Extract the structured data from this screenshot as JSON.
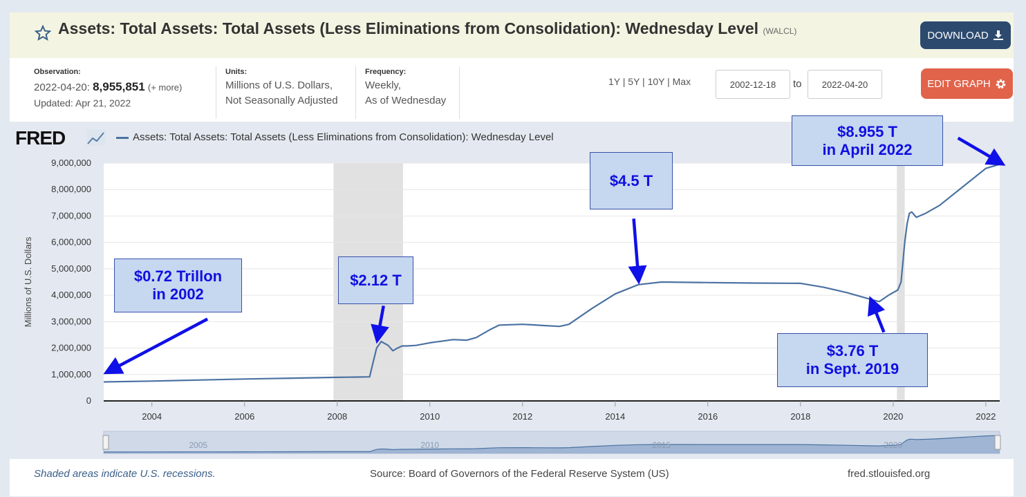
{
  "header": {
    "title": "Assets: Total Assets: Total Assets (Less Eliminations from Consolidation): Wednesday Level",
    "series_id": "(WALCL)",
    "download_label": "DOWNLOAD",
    "edit_label": "EDIT GRAPH"
  },
  "meta": {
    "observation_label": "Observation:",
    "observation_date": "2022-04-20:",
    "observation_value": "8,955,851",
    "observation_more": "(+ more)",
    "updated": "Updated: Apr 21, 2022",
    "units_label": "Units:",
    "units_line1": "Millions of U.S. Dollars,",
    "units_line2": "Not Seasonally Adjusted",
    "frequency_label": "Frequency:",
    "frequency_line1": "Weekly,",
    "frequency_line2": "As of Wednesday"
  },
  "controls": {
    "ranges": "1Y | 5Y | 10Y | Max",
    "start_date": "2002-12-18",
    "to_label": "to",
    "end_date": "2022-04-20"
  },
  "legend": {
    "logo": "FRED",
    "series_name": "Assets: Total Assets: Total Assets (Less Eliminations from Consolidation): Wednesday Level"
  },
  "annotations": [
    {
      "line1": "$0.72 Trillon",
      "line2": "in 2002"
    },
    {
      "line1": "$2.12 T",
      "line2": ""
    },
    {
      "line1": "$4.5 T",
      "line2": ""
    },
    {
      "line1": "$8.955 T",
      "line2": "in April 2022"
    },
    {
      "line1": "$3.76 T",
      "line2": "in Sept. 2019"
    }
  ],
  "footer": {
    "recessions_note": "Shaded areas indicate U.S. recessions.",
    "source": "Source: Board of Governors of the Federal Reserve System (US)",
    "site": "fred.stlouisfed.org"
  },
  "colors": {
    "line": "#4b72a1",
    "recession": "#e1e1e1",
    "callout_text": "#1010e0",
    "arrow": "#1010e8"
  },
  "chart_data": {
    "type": "line",
    "ylabel": "Millions of U.S. Dollars",
    "xlim": [
      2002.96,
      2022.3
    ],
    "ylim": [
      0,
      9000000
    ],
    "y_ticks": [
      0,
      1000000,
      2000000,
      3000000,
      4000000,
      5000000,
      6000000,
      7000000,
      8000000,
      9000000
    ],
    "y_tick_labels": [
      "0",
      "1,000,000",
      "2,000,000",
      "3,000,000",
      "4,000,000",
      "5,000,000",
      "6,000,000",
      "7,000,000",
      "8,000,000",
      "9,000,000"
    ],
    "x_ticks": [
      2004,
      2006,
      2008,
      2010,
      2012,
      2014,
      2016,
      2018,
      2020,
      2022
    ],
    "x_tick_labels": [
      "2004",
      "2006",
      "2008",
      "2010",
      "2012",
      "2014",
      "2016",
      "2018",
      "2020",
      "2022"
    ],
    "navigator_labels": [
      "2005",
      "2010",
      "2015",
      "2020"
    ],
    "navigator_ticks": [
      2005,
      2010,
      2015,
      2020
    ],
    "recessions": [
      [
        2007.92,
        2009.42
      ],
      [
        2020.08,
        2020.25
      ]
    ],
    "grid": true,
    "series": [
      {
        "x": [
          2002.96,
          2004.0,
          2005.0,
          2006.0,
          2007.0,
          2007.9,
          2008.7,
          2008.78,
          2008.85,
          2008.95,
          2009.0,
          2009.1,
          2009.2,
          2009.3,
          2009.4,
          2009.5,
          2009.7,
          2010.0,
          2010.5,
          2010.8,
          2011.0,
          2011.3,
          2011.5,
          2012.0,
          2012.2,
          2012.5,
          2012.8,
          2013.0,
          2013.5,
          2014.0,
          2014.5,
          2015.0,
          2016.0,
          2017.0,
          2018.0,
          2018.5,
          2019.0,
          2019.5,
          2019.7,
          2019.9,
          2020.1,
          2020.17,
          2020.25,
          2020.3,
          2020.35,
          2020.4,
          2020.5,
          2020.7,
          2021.0,
          2021.5,
          2022.0,
          2022.3
        ],
        "y": [
          720000,
          750000,
          790000,
          830000,
          860000,
          890000,
          910000,
          1500000,
          2000000,
          2250000,
          2200000,
          2100000,
          1900000,
          2000000,
          2080000,
          2080000,
          2100000,
          2200000,
          2320000,
          2300000,
          2400000,
          2700000,
          2870000,
          2900000,
          2880000,
          2850000,
          2820000,
          2900000,
          3500000,
          4050000,
          4400000,
          4500000,
          4480000,
          4460000,
          4450000,
          4300000,
          4100000,
          3850000,
          3760000,
          4000000,
          4200000,
          4500000,
          6000000,
          6700000,
          7100000,
          7150000,
          6950000,
          7100000,
          7400000,
          8100000,
          8800000,
          8955851
        ]
      }
    ]
  }
}
